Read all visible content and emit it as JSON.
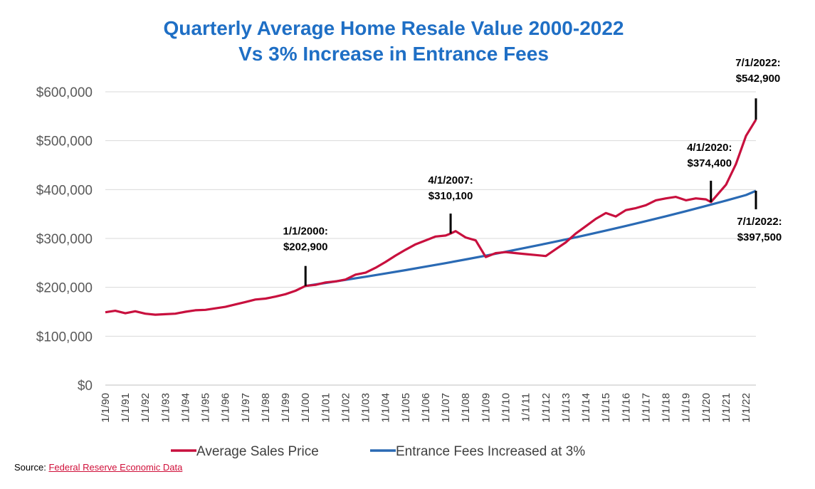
{
  "colors": {
    "title": "#1f6fc5",
    "sales": "#c8103e",
    "fees": "#2a6ab4",
    "grid": "#d9d9d9",
    "source_link": "#d0103a"
  },
  "source": {
    "label": "Source:",
    "link_text": "Federal Reserve Economic Data"
  },
  "chart_data": {
    "type": "line",
    "title": [
      "Quarterly Average Home Resale Value 2000-2022",
      "Vs 3% Increase in Entrance Fees"
    ],
    "ylim": [
      0,
      600000
    ],
    "yticks": [
      0,
      100000,
      200000,
      300000,
      400000,
      500000,
      600000
    ],
    "ytick_labels": [
      "$0",
      "$100,000",
      "$200,000",
      "$300,000",
      "$400,000",
      "$500,000",
      "$600,000"
    ],
    "xlim": [
      "1990-01-01",
      "2022-07-01"
    ],
    "xtick_labels": [
      "1/1/90",
      "1/1/91",
      "1/1/92",
      "1/1/93",
      "1/1/94",
      "1/1/95",
      "1/1/96",
      "1/1/97",
      "1/1/98",
      "1/1/99",
      "1/1/00",
      "1/1/01",
      "1/1/02",
      "1/1/03",
      "1/1/04",
      "1/1/05",
      "1/1/06",
      "1/1/07",
      "1/1/08",
      "1/1/09",
      "1/1/10",
      "1/1/11",
      "1/1/12",
      "1/1/13",
      "1/1/14",
      "1/1/15",
      "1/1/16",
      "1/1/17",
      "1/1/18",
      "1/1/19",
      "1/1/20",
      "1/1/21",
      "1/1/22"
    ],
    "legend_position": "bottom",
    "grid": true,
    "series": [
      {
        "name": "Average Sales Price",
        "points": [
          [
            "1990-01-01",
            149000
          ],
          [
            "1990-07-01",
            152000
          ],
          [
            "1991-01-01",
            147000
          ],
          [
            "1991-07-01",
            151000
          ],
          [
            "1992-01-01",
            146000
          ],
          [
            "1992-07-01",
            144000
          ],
          [
            "1993-01-01",
            145000
          ],
          [
            "1993-07-01",
            146000
          ],
          [
            "1994-01-01",
            150000
          ],
          [
            "1994-07-01",
            153000
          ],
          [
            "1995-01-01",
            154000
          ],
          [
            "1995-07-01",
            157000
          ],
          [
            "1996-01-01",
            160000
          ],
          [
            "1996-07-01",
            165000
          ],
          [
            "1997-01-01",
            170000
          ],
          [
            "1997-07-01",
            175000
          ],
          [
            "1998-01-01",
            177000
          ],
          [
            "1998-07-01",
            181000
          ],
          [
            "1999-01-01",
            186000
          ],
          [
            "1999-07-01",
            193000
          ],
          [
            "2000-01-01",
            202900
          ],
          [
            "2000-07-01",
            205000
          ],
          [
            "2001-01-01",
            210000
          ],
          [
            "2001-07-01",
            212000
          ],
          [
            "2002-01-01",
            216000
          ],
          [
            "2002-07-01",
            226000
          ],
          [
            "2003-01-01",
            230000
          ],
          [
            "2003-07-01",
            240000
          ],
          [
            "2004-01-01",
            252000
          ],
          [
            "2004-07-01",
            265000
          ],
          [
            "2005-01-01",
            277000
          ],
          [
            "2005-07-01",
            288000
          ],
          [
            "2006-01-01",
            296000
          ],
          [
            "2006-07-01",
            304000
          ],
          [
            "2007-01-01",
            306000
          ],
          [
            "2007-04-01",
            310100
          ],
          [
            "2007-07-01",
            315000
          ],
          [
            "2008-01-01",
            302000
          ],
          [
            "2008-07-01",
            296000
          ],
          [
            "2009-01-01",
            262000
          ],
          [
            "2009-07-01",
            270000
          ],
          [
            "2010-01-01",
            272000
          ],
          [
            "2010-07-01",
            270000
          ],
          [
            "2011-01-01",
            268000
          ],
          [
            "2011-07-01",
            266000
          ],
          [
            "2012-01-01",
            264000
          ],
          [
            "2012-07-01",
            278000
          ],
          [
            "2013-01-01",
            292000
          ],
          [
            "2013-07-01",
            310000
          ],
          [
            "2014-01-01",
            325000
          ],
          [
            "2014-07-01",
            340000
          ],
          [
            "2015-01-01",
            352000
          ],
          [
            "2015-07-01",
            345000
          ],
          [
            "2016-01-01",
            358000
          ],
          [
            "2016-07-01",
            362000
          ],
          [
            "2017-01-01",
            368000
          ],
          [
            "2017-07-01",
            378000
          ],
          [
            "2018-01-01",
            382000
          ],
          [
            "2018-07-01",
            385000
          ],
          [
            "2019-01-01",
            378000
          ],
          [
            "2019-07-01",
            382000
          ],
          [
            "2020-01-01",
            380000
          ],
          [
            "2020-04-01",
            374400
          ],
          [
            "2020-07-01",
            386000
          ],
          [
            "2021-01-01",
            410000
          ],
          [
            "2021-07-01",
            452000
          ],
          [
            "2022-01-01",
            510000
          ],
          [
            "2022-07-01",
            542900
          ]
        ]
      },
      {
        "name": "Entrance Fees Increased at 3%",
        "points": [
          [
            "2000-01-01",
            202900
          ],
          [
            "2001-01-01",
            209000
          ],
          [
            "2002-01-01",
            215300
          ],
          [
            "2003-01-01",
            221700
          ],
          [
            "2004-01-01",
            228400
          ],
          [
            "2005-01-01",
            235200
          ],
          [
            "2006-01-01",
            242300
          ],
          [
            "2007-01-01",
            249500
          ],
          [
            "2008-01-01",
            257000
          ],
          [
            "2009-01-01",
            264700
          ],
          [
            "2010-01-01",
            272700
          ],
          [
            "2011-01-01",
            280900
          ],
          [
            "2012-01-01",
            289300
          ],
          [
            "2013-01-01",
            298000
          ],
          [
            "2014-01-01",
            306900
          ],
          [
            "2015-01-01",
            316100
          ],
          [
            "2016-01-01",
            325600
          ],
          [
            "2017-01-01",
            335400
          ],
          [
            "2018-01-01",
            345400
          ],
          [
            "2019-01-01",
            355800
          ],
          [
            "2020-01-01",
            366500
          ],
          [
            "2021-01-01",
            377500
          ],
          [
            "2022-01-01",
            388800
          ],
          [
            "2022-07-01",
            397500
          ]
        ]
      }
    ],
    "annotations": [
      {
        "date": "2000-01-01",
        "value": 202900,
        "label": [
          "1/1/2000:",
          "$202,900"
        ]
      },
      {
        "date": "2007-04-01",
        "value": 310100,
        "label": [
          "4/1/2007:",
          "$310,100"
        ]
      },
      {
        "date": "2020-04-01",
        "value": 374400,
        "label": [
          "4/1/2020:",
          "$374,400"
        ]
      },
      {
        "date": "2022-07-01",
        "value": 542900,
        "label": [
          "7/1/2022:",
          "$542,900"
        ]
      },
      {
        "date": "2022-07-01",
        "value": 397500,
        "label": [
          "7/1/2022:",
          "$397,500"
        ]
      }
    ]
  }
}
